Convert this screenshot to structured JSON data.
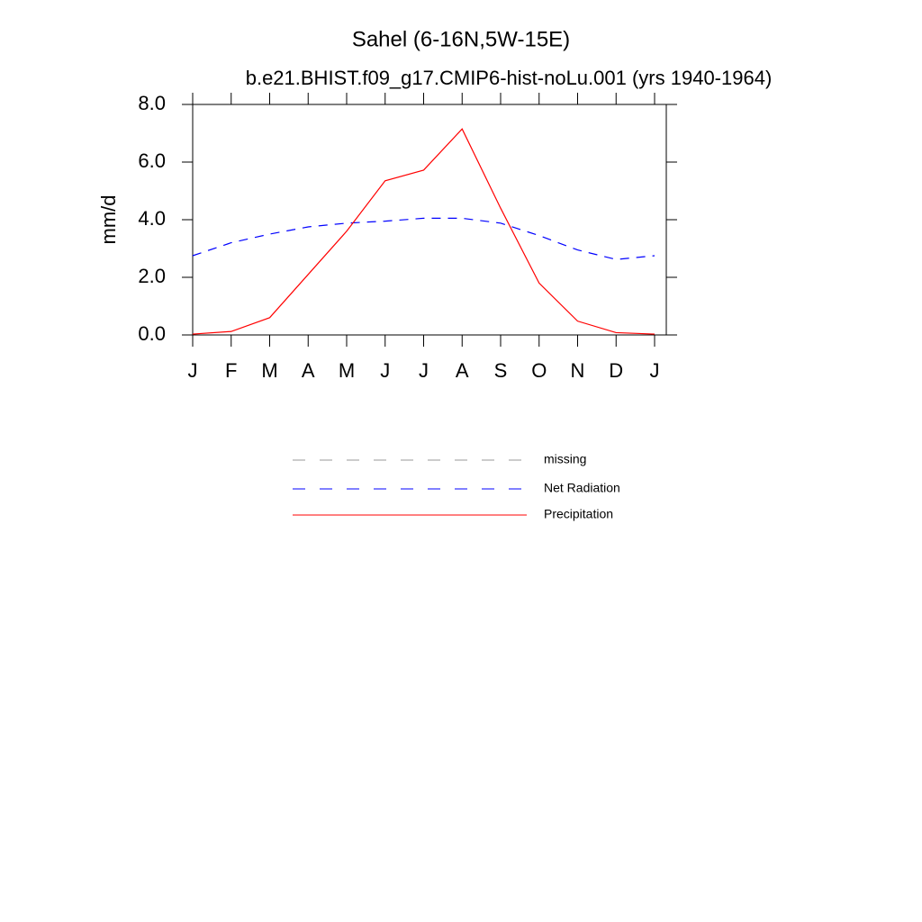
{
  "chart_data": {
    "type": "line",
    "title": "Sahel (6-16N,5W-15E)",
    "subtitle": "b.e21.BHIST.f09_g17.CMIP6-hist-noLu.001 (yrs 1940-1964)",
    "y_label": "mm/d",
    "categories": [
      "J",
      "F",
      "M",
      "A",
      "M",
      "J",
      "J",
      "A",
      "S",
      "O",
      "N",
      "D",
      "J"
    ],
    "ylim": [
      0,
      8
    ],
    "yticks": [
      {
        "value": 0,
        "label": "0.0"
      },
      {
        "value": 2,
        "label": "2.0"
      },
      {
        "value": 4,
        "label": "4.0"
      },
      {
        "value": 6,
        "label": "6.0"
      },
      {
        "value": 8,
        "label": "8.0"
      }
    ],
    "series": [
      {
        "name": "missing",
        "color": "#999999",
        "dash": true,
        "values": [
          null,
          null,
          null,
          null,
          null,
          null,
          null,
          null,
          null,
          null,
          null,
          null,
          null
        ]
      },
      {
        "name": "Net Radiation",
        "color": "#0000ff",
        "dash": true,
        "values": [
          2.75,
          3.2,
          3.5,
          3.75,
          3.88,
          3.95,
          4.05,
          4.05,
          3.88,
          3.45,
          2.95,
          2.62,
          2.75
        ]
      },
      {
        "name": "Precipitation",
        "color": "#ff0000",
        "dash": false,
        "values": [
          0.03,
          0.12,
          0.6,
          2.1,
          3.6,
          5.35,
          5.72,
          7.15,
          4.4,
          1.8,
          0.48,
          0.08,
          0.03
        ]
      }
    ]
  }
}
